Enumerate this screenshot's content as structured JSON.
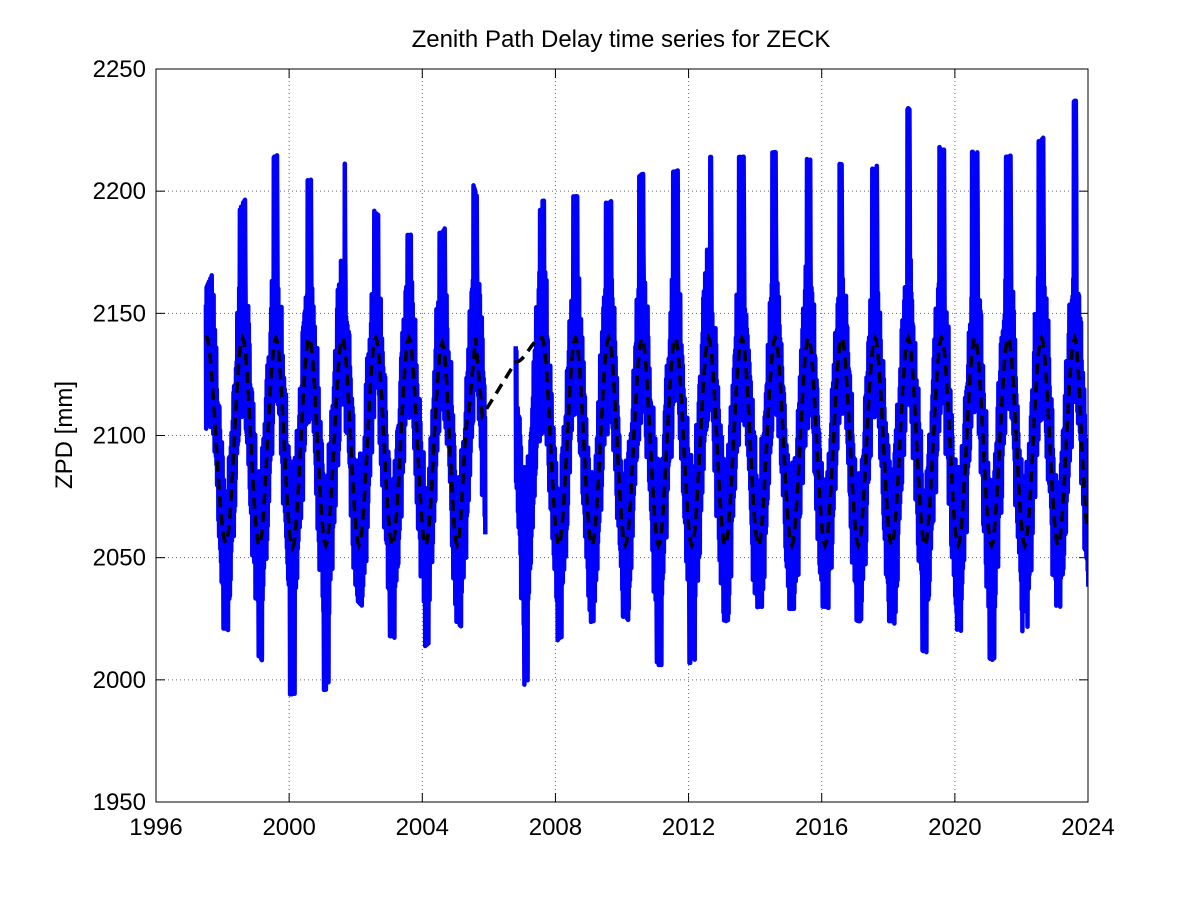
{
  "chart_data": {
    "type": "line",
    "title": "Zenith Path Delay time series for ZECK",
    "xlabel": "",
    "ylabel": "ZPD [mm]",
    "xlim": [
      1996,
      2024
    ],
    "ylim": [
      1950,
      2250
    ],
    "xticks": [
      1996,
      2000,
      2004,
      2008,
      2012,
      2016,
      2020,
      2024
    ],
    "yticks": [
      1950,
      2000,
      2050,
      2100,
      2150,
      2200,
      2250
    ],
    "grid": true,
    "legend": "none",
    "data_gaps": [
      [
        2005.9,
        2006.8
      ]
    ],
    "series": [
      {
        "style": "solid-thick",
        "color": "#0000ff",
        "start": 1997.5,
        "end": 2024.0,
        "seasonal_mean": 2097,
        "seasonal_amplitude": 42,
        "daily_spread": 40,
        "annual_max": [
          [
            1997.5,
            2160
          ],
          [
            1998.6,
            2195
          ],
          [
            1999.6,
            2215
          ],
          [
            2000.6,
            2204
          ],
          [
            2001.5,
            2215
          ],
          [
            2002.6,
            2191
          ],
          [
            2003.5,
            2182
          ],
          [
            2004.6,
            2183
          ],
          [
            2005.5,
            2204
          ],
          [
            2006.8,
            2148
          ],
          [
            2007.6,
            2196
          ],
          [
            2008.6,
            2198
          ],
          [
            2009.6,
            2195
          ],
          [
            2010.6,
            2207
          ],
          [
            2011.6,
            2208
          ],
          [
            2012.6,
            2214
          ],
          [
            2013.6,
            2214
          ],
          [
            2014.6,
            2216
          ],
          [
            2015.6,
            2213
          ],
          [
            2016.6,
            2211
          ],
          [
            2017.6,
            2209
          ],
          [
            2018.6,
            2234
          ],
          [
            2019.6,
            2217
          ],
          [
            2020.6,
            2216
          ],
          [
            2021.6,
            2214
          ],
          [
            2022.6,
            2221
          ],
          [
            2023.6,
            2237
          ]
        ],
        "annual_min": [
          [
            1998.1,
            2021
          ],
          [
            1999.0,
            2011
          ],
          [
            2000.0,
            1994
          ],
          [
            2001.1,
            1996
          ],
          [
            2002.0,
            2033
          ],
          [
            2003.0,
            2018
          ],
          [
            2004.0,
            2013
          ],
          [
            2005.0,
            2024
          ],
          [
            2007.0,
            1997
          ],
          [
            2008.1,
            2017
          ],
          [
            2009.1,
            2024
          ],
          [
            2010.1,
            2026
          ],
          [
            2011.1,
            2006
          ],
          [
            2012.1,
            2007
          ],
          [
            2013.1,
            2024
          ],
          [
            2014.1,
            2030
          ],
          [
            2015.1,
            2029
          ],
          [
            2016.1,
            2030
          ],
          [
            2017.1,
            2024
          ],
          [
            2018.1,
            2024
          ],
          [
            2019.1,
            2011
          ],
          [
            2020.1,
            2021
          ],
          [
            2021.1,
            2008
          ],
          [
            2022.1,
            2021
          ],
          [
            2023.1,
            2031
          ],
          [
            2024.0,
            2014
          ]
        ]
      },
      {
        "style": "dashed",
        "color": "#000000",
        "start": 1997.5,
        "end": 2024.0,
        "model": "annual sinusoid",
        "mean": 2097,
        "amplitude": 43,
        "peak_phase": 0.6,
        "points": [
          [
            1997.5,
            2141
          ],
          [
            1998.1,
            2056
          ],
          [
            1998.6,
            2140
          ],
          [
            1999.1,
            2055
          ],
          [
            1999.6,
            2140
          ],
          [
            2000.1,
            2054
          ],
          [
            2000.6,
            2140
          ],
          [
            2001.1,
            2055
          ],
          [
            2001.6,
            2140
          ],
          [
            2002.1,
            2055
          ],
          [
            2002.6,
            2140
          ],
          [
            2003.1,
            2055
          ],
          [
            2003.6,
            2140
          ],
          [
            2004.1,
            2055
          ],
          [
            2004.6,
            2138
          ],
          [
            2005.05,
            2055
          ],
          [
            2005.4,
            2110
          ],
          [
            2005.6,
            2140
          ],
          [
            2005.8,
            2108
          ],
          [
            2006.8,
            2130
          ],
          [
            2007.6,
            2140
          ],
          [
            2008.1,
            2055
          ],
          [
            2008.6,
            2140
          ],
          [
            2009.1,
            2055
          ],
          [
            2009.6,
            2140
          ],
          [
            2010.1,
            2055
          ],
          [
            2010.6,
            2140
          ],
          [
            2011.1,
            2055
          ],
          [
            2011.6,
            2140
          ],
          [
            2012.1,
            2055
          ],
          [
            2012.6,
            2140
          ],
          [
            2013.1,
            2055
          ],
          [
            2013.6,
            2140
          ],
          [
            2014.1,
            2055
          ],
          [
            2014.6,
            2140
          ],
          [
            2015.1,
            2055
          ],
          [
            2015.6,
            2140
          ],
          [
            2016.1,
            2055
          ],
          [
            2016.6,
            2140
          ],
          [
            2017.1,
            2055
          ],
          [
            2017.6,
            2140
          ],
          [
            2018.1,
            2055
          ],
          [
            2018.6,
            2140
          ],
          [
            2019.1,
            2055
          ],
          [
            2019.6,
            2140
          ],
          [
            2020.1,
            2055
          ],
          [
            2020.6,
            2140
          ],
          [
            2021.1,
            2055
          ],
          [
            2021.6,
            2140
          ],
          [
            2022.1,
            2055
          ],
          [
            2022.6,
            2140
          ],
          [
            2023.1,
            2055
          ],
          [
            2023.6,
            2140
          ],
          [
            2024.0,
            2062
          ]
        ]
      }
    ]
  }
}
